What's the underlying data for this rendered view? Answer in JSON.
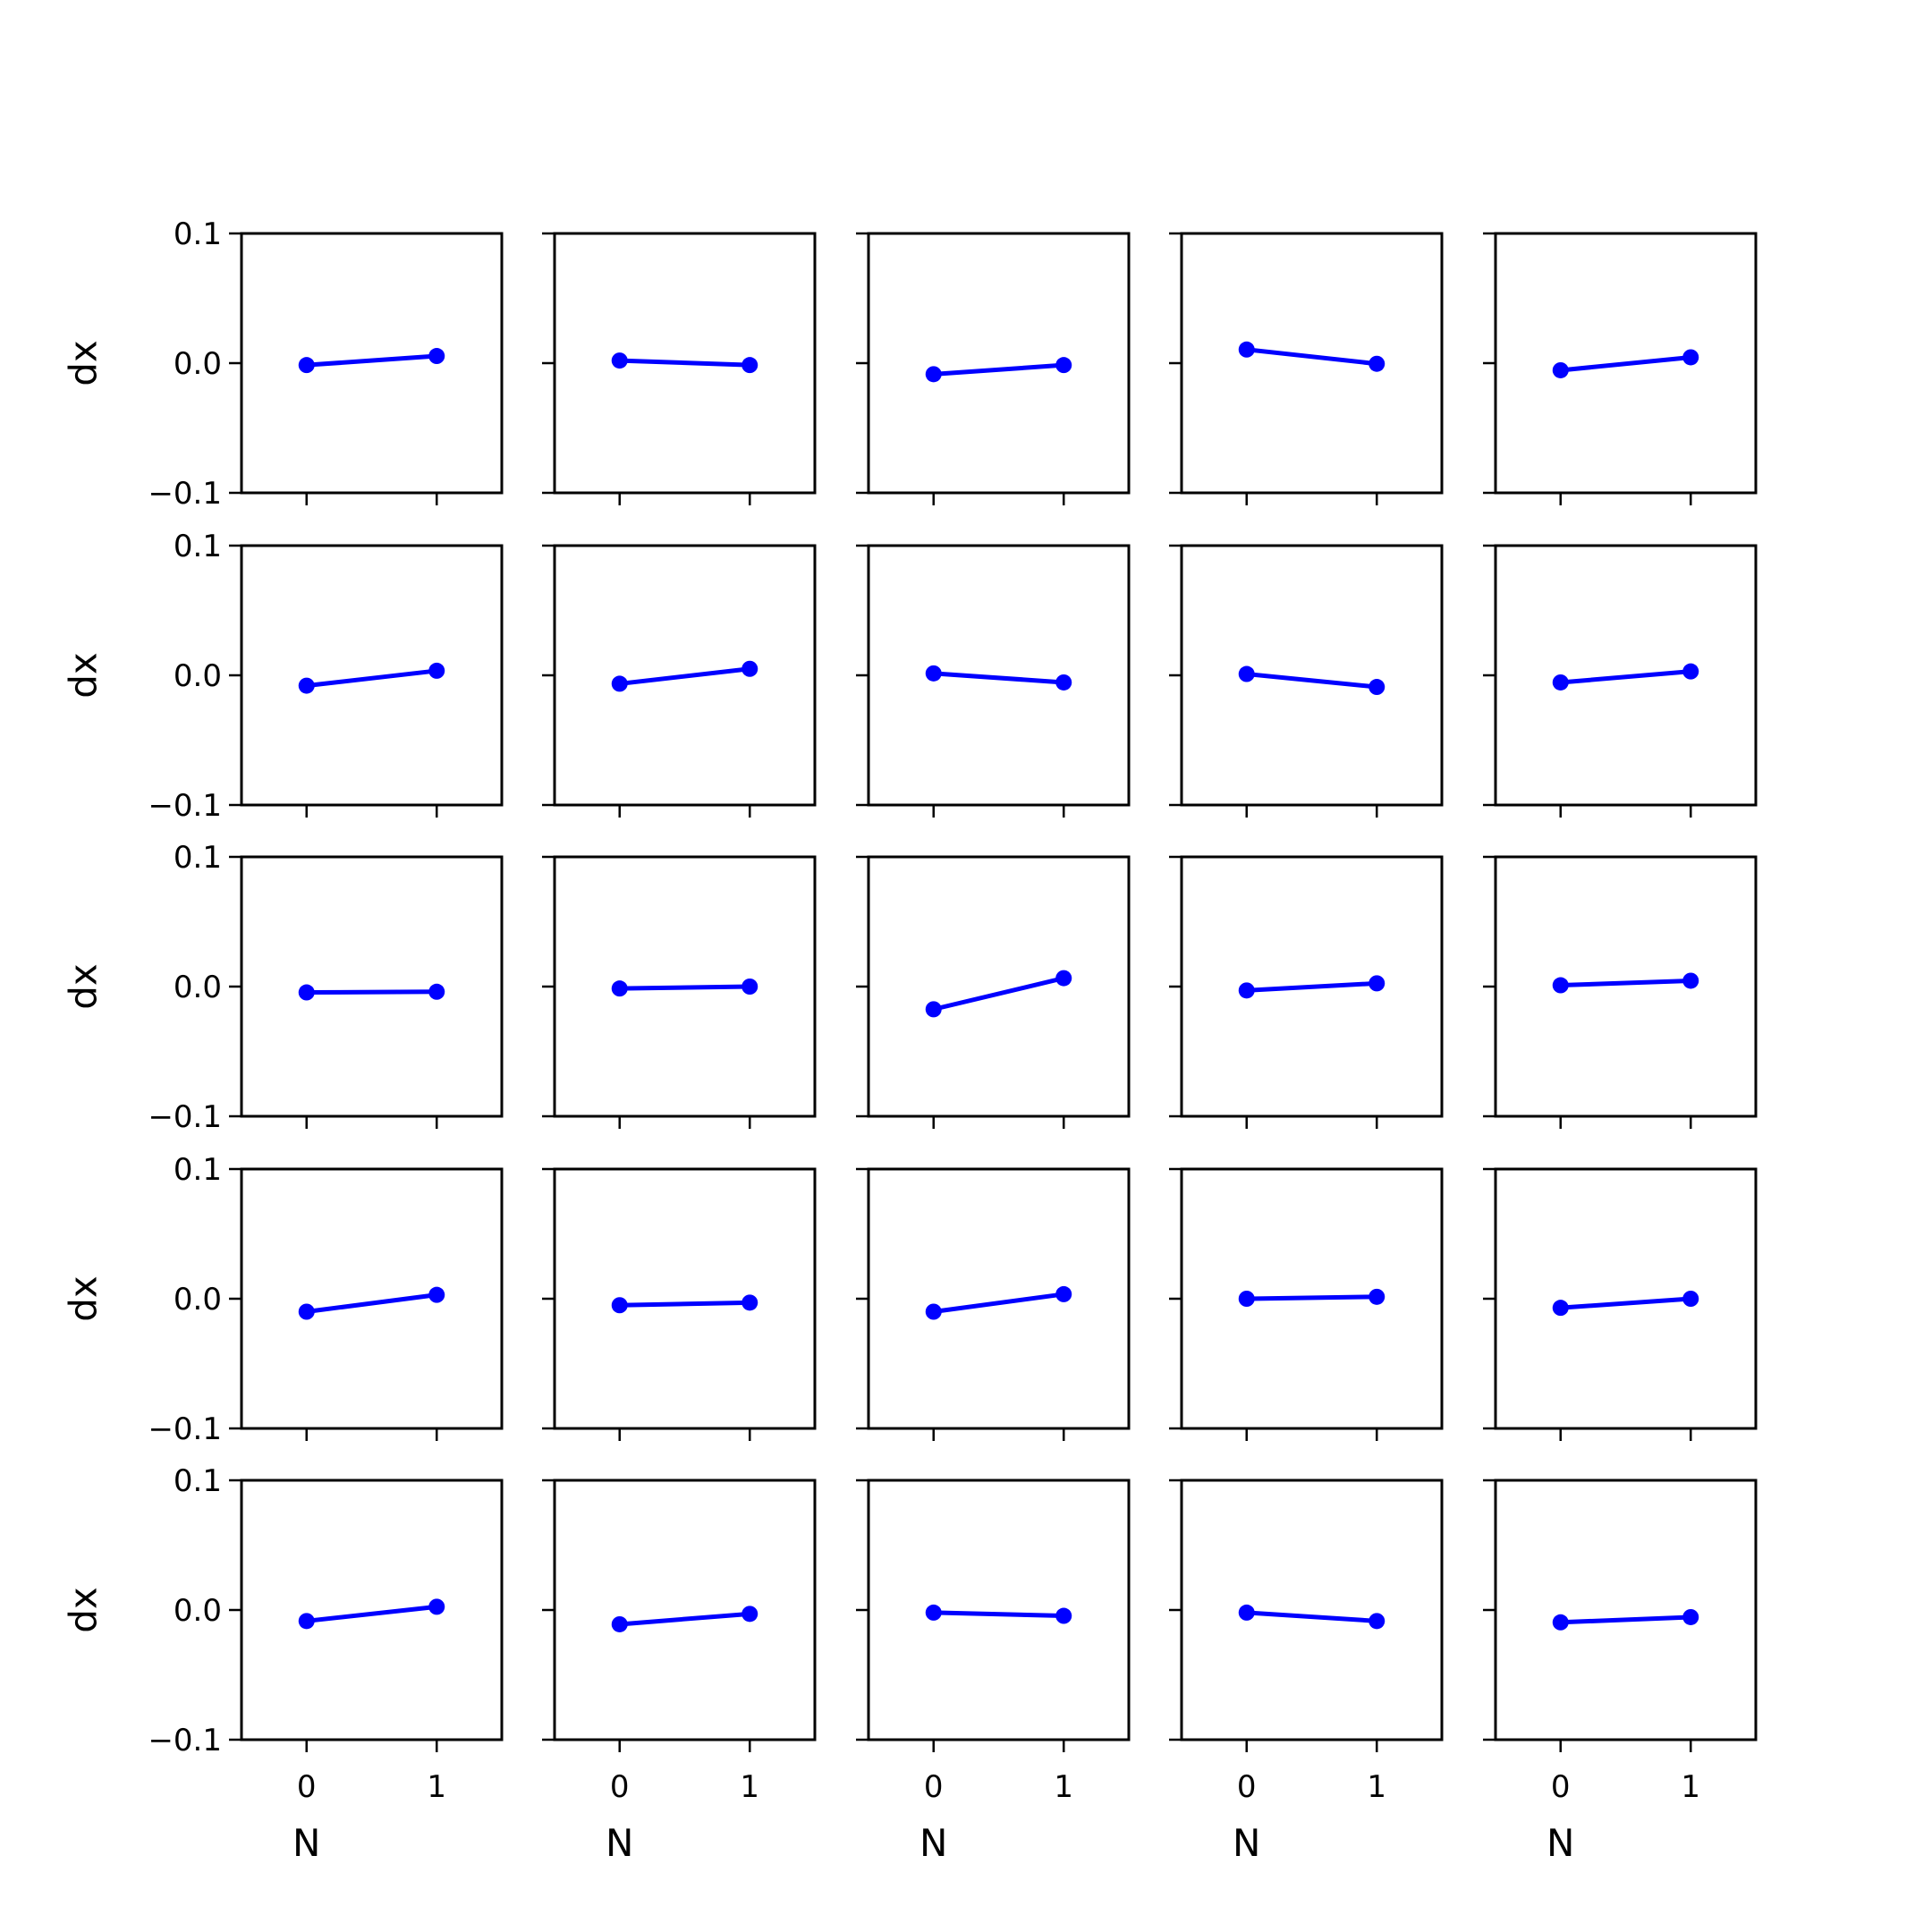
{
  "chart_data": {
    "type": "line",
    "layout": "5x5 grid of small multiples",
    "xlabel": "N",
    "ylabel": "dx",
    "x": [
      0,
      1
    ],
    "xticks": [
      "0",
      "1"
    ],
    "xlim": [
      -0.5,
      1.5
    ],
    "ylim": [
      -0.1,
      0.1
    ],
    "yticks": [
      "0.1",
      "0.0",
      "−0.1"
    ],
    "ytick_values": [
      0.1,
      0.0,
      -0.1
    ],
    "grid": false,
    "legend": "none",
    "color": "#0000ff",
    "panels": [
      [
        [
          -0.0015,
          0.0055
        ],
        [
          0.002,
          -0.0015
        ],
        [
          -0.0085,
          -0.0015
        ],
        [
          0.0105,
          -0.0005
        ],
        [
          -0.0055,
          0.0045
        ]
      ],
      [
        [
          -0.008,
          0.0035
        ],
        [
          -0.0065,
          0.005
        ],
        [
          0.0015,
          -0.0055
        ],
        [
          0.001,
          -0.009
        ],
        [
          -0.0055,
          0.003
        ]
      ],
      [
        [
          -0.0045,
          -0.004
        ],
        [
          -0.0015,
          0.0
        ],
        [
          -0.0175,
          0.0065
        ],
        [
          -0.003,
          0.0025
        ],
        [
          0.001,
          0.0045
        ]
      ],
      [
        [
          -0.01,
          0.003
        ],
        [
          -0.005,
          -0.003
        ],
        [
          -0.01,
          0.0035
        ],
        [
          0.0,
          0.0015
        ],
        [
          -0.007,
          0.0
        ]
      ],
      [
        [
          -0.0085,
          0.0025
        ],
        [
          -0.011,
          -0.003
        ],
        [
          -0.002,
          -0.0045
        ],
        [
          -0.002,
          -0.0085
        ],
        [
          -0.0095,
          -0.0055
        ]
      ]
    ]
  }
}
